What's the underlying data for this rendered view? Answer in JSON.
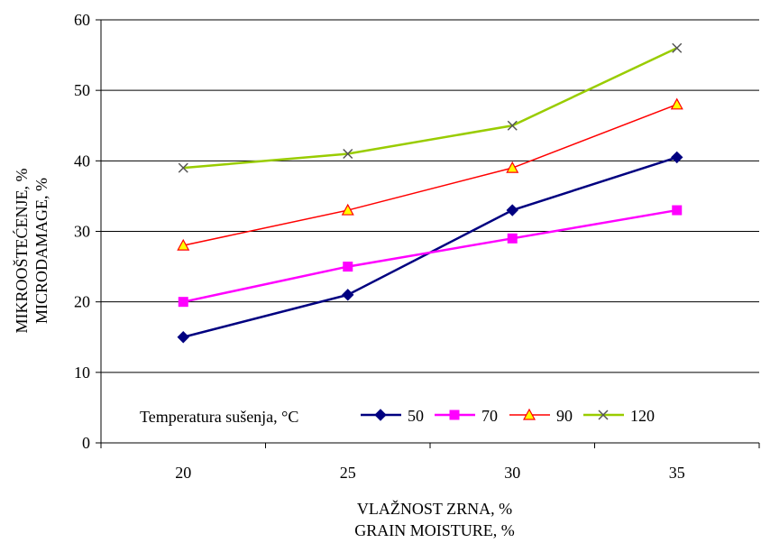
{
  "chart_data": {
    "type": "line",
    "x": [
      20,
      25,
      30,
      35
    ],
    "categories": [
      "20",
      "25",
      "30",
      "35"
    ],
    "ylim": [
      0,
      60
    ],
    "yticks": [
      "0",
      "10",
      "20",
      "30",
      "40",
      "50",
      "60"
    ],
    "grid": "horizontal",
    "xlabel_line1": "VLAŽNOST ZRNA, %",
    "xlabel_line2": "GRAIN MOISTURE, %",
    "ylabel_line1": "MIKROOŠTEĆENJE, %",
    "ylabel_line2": "MICRODAMAGE, %",
    "legend": {
      "title": "Temperatura sušenja, °C",
      "placement": "bottom"
    },
    "series": [
      {
        "name": "50",
        "values": [
          15,
          21,
          33,
          40.5
        ],
        "color": "#000080",
        "marker": "diamond"
      },
      {
        "name": "70",
        "values": [
          20,
          25,
          29,
          33
        ],
        "color": "#FF00FF",
        "marker": "square"
      },
      {
        "name": "90",
        "values": [
          28,
          33,
          39,
          48
        ],
        "color": "#FF0000",
        "marker": "triangle",
        "fill": "#FFFF00"
      },
      {
        "name": "120",
        "values": [
          39,
          41,
          45,
          56
        ],
        "color": "#99CC00",
        "marker": "x"
      }
    ]
  }
}
